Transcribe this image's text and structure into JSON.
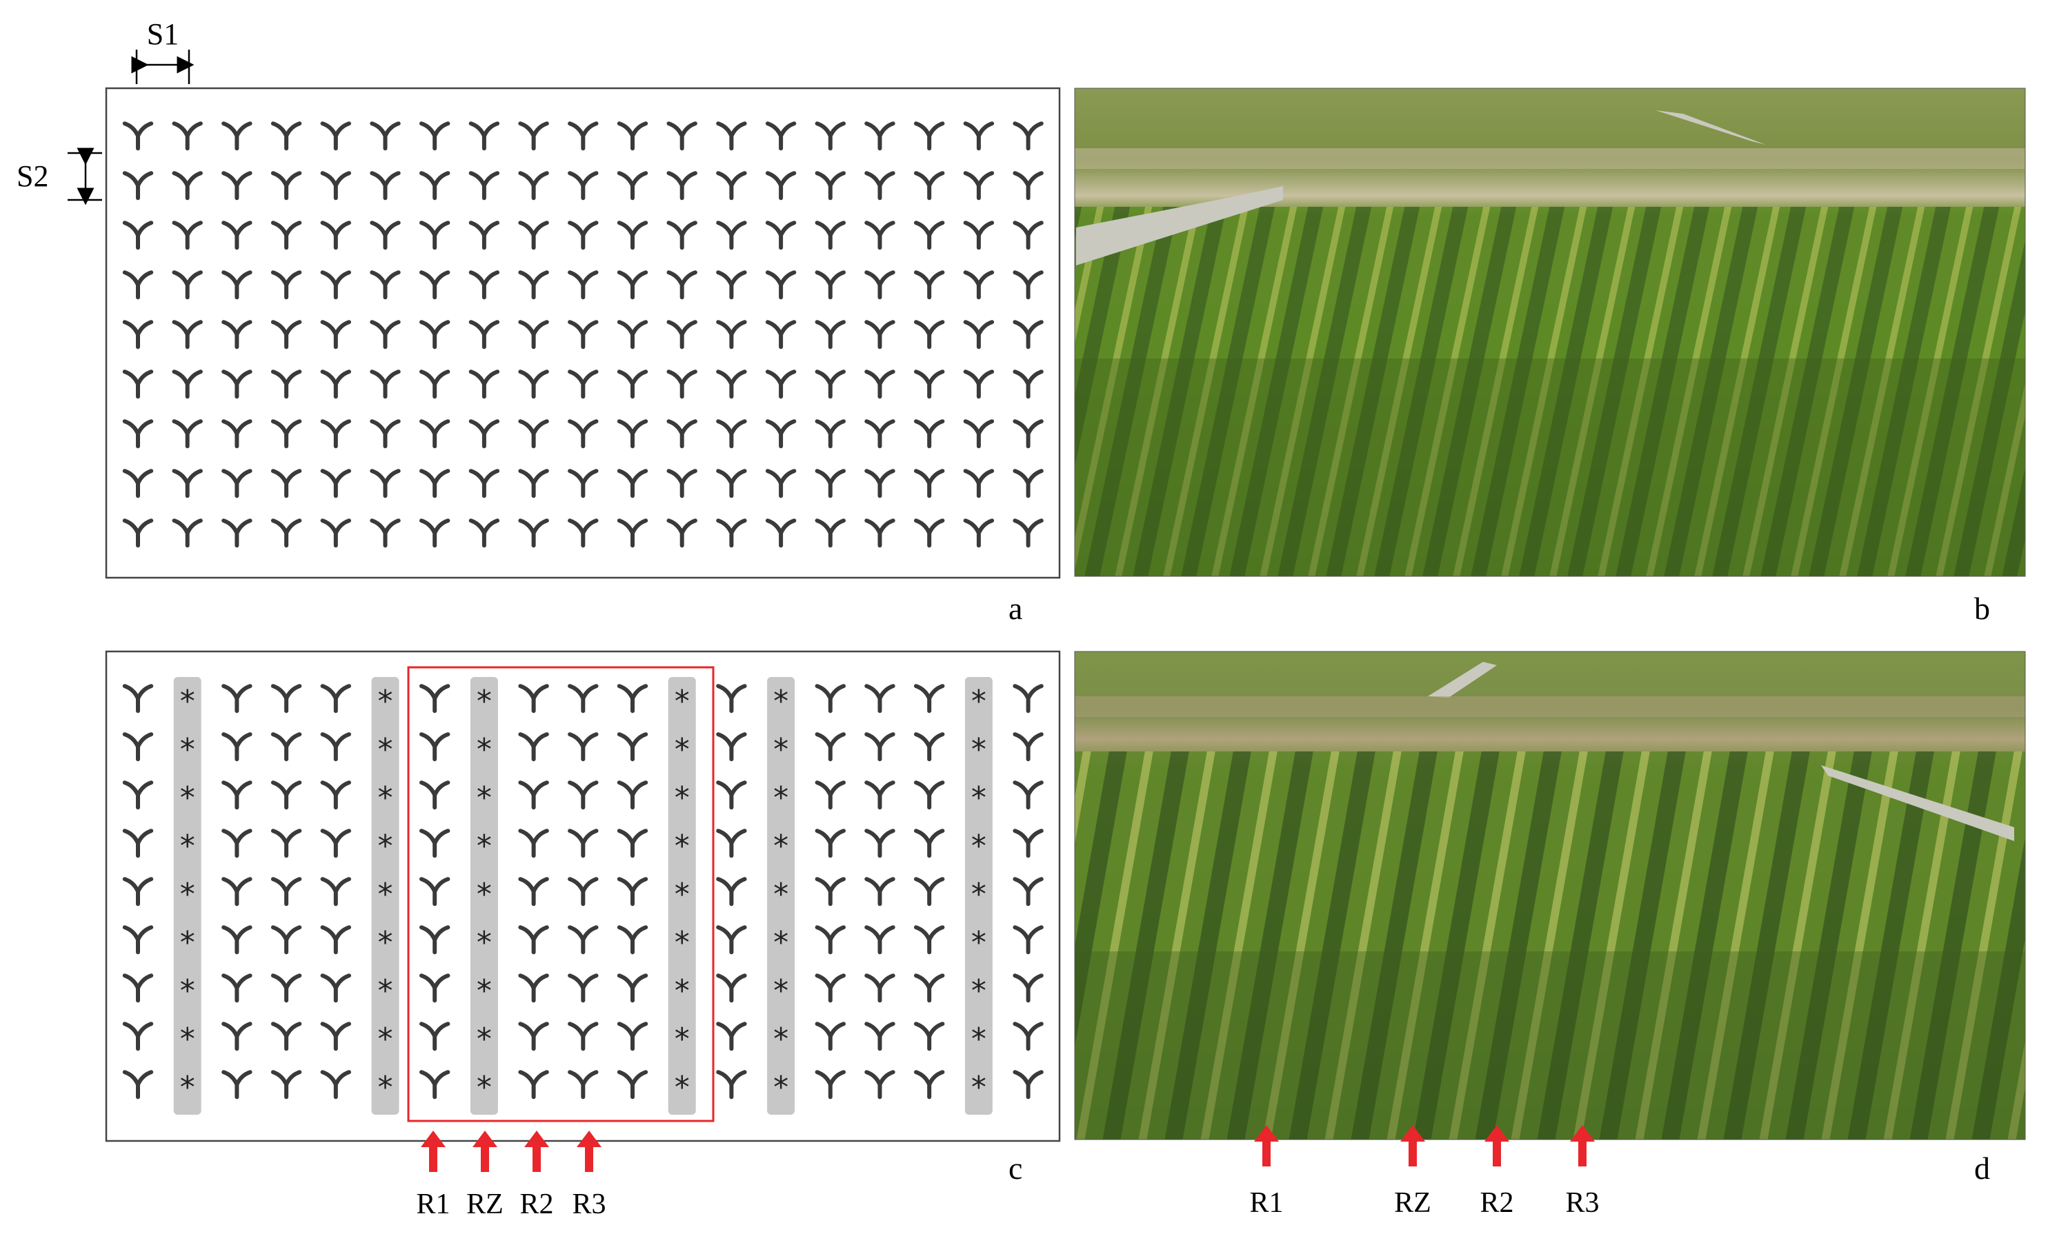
{
  "panels": {
    "a": {
      "letter": "a",
      "spacing_labels": {
        "s1": "S1",
        "s2": "S2"
      }
    },
    "b": {
      "letter": "b",
      "photo": "rice-field-photo-uniform-rows"
    },
    "c": {
      "letter": "c",
      "row_labels": [
        "R1",
        "RZ",
        "R2",
        "R3"
      ]
    },
    "d": {
      "letter": "d",
      "photo": "rice-field-photo-marked-rows",
      "row_labels": [
        "R1",
        "RZ",
        "R2",
        "R3"
      ]
    }
  },
  "layout_grid": {
    "columns": 19,
    "rows": 9,
    "planted_symbol": "seedling-icon",
    "gap_symbol": "*"
  },
  "colors": {
    "highlight_box": "#e8262b",
    "arrow": "#e8262b",
    "gap_strip": "#c7c7c7",
    "seedling": "#3a3a3a"
  }
}
